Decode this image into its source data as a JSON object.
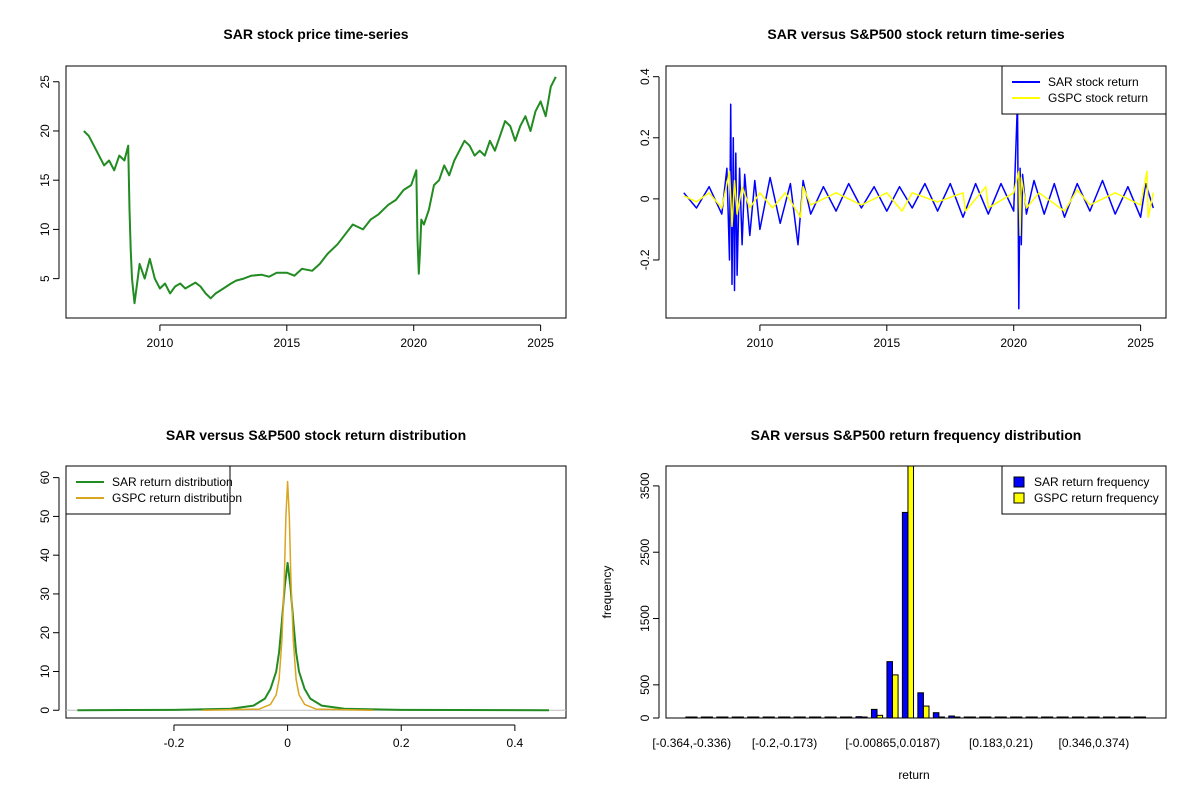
{
  "chart_data": [
    {
      "id": "price",
      "type": "line",
      "title": "SAR stock price time-series",
      "xlabel": "",
      "ylabel": "",
      "xlim": [
        2006.3,
        2026.0
      ],
      "ylim": [
        1.0,
        26.6
      ],
      "x_ticks": [
        2010,
        2015,
        2020,
        2025
      ],
      "y_ticks": [
        5,
        10,
        15,
        20,
        25
      ],
      "colors": {
        "line": "#228B22"
      },
      "series": [
        {
          "name": "SAR price",
          "x": [
            2007.0,
            2007.2,
            2007.4,
            2007.6,
            2007.8,
            2008.0,
            2008.2,
            2008.4,
            2008.6,
            2008.75,
            2008.8,
            2008.85,
            2008.9,
            2009.0,
            2009.1,
            2009.2,
            2009.4,
            2009.6,
            2009.8,
            2010.0,
            2010.2,
            2010.4,
            2010.6,
            2010.8,
            2011.0,
            2011.2,
            2011.4,
            2011.6,
            2011.8,
            2012.0,
            2012.2,
            2012.5,
            2012.8,
            2013.0,
            2013.3,
            2013.6,
            2014.0,
            2014.3,
            2014.6,
            2015.0,
            2015.3,
            2015.6,
            2016.0,
            2016.3,
            2016.6,
            2017.0,
            2017.3,
            2017.6,
            2018.0,
            2018.3,
            2018.6,
            2019.0,
            2019.3,
            2019.6,
            2019.9,
            2020.1,
            2020.15,
            2020.2,
            2020.25,
            2020.3,
            2020.4,
            2020.6,
            2020.8,
            2021.0,
            2021.2,
            2021.4,
            2021.6,
            2021.8,
            2022.0,
            2022.2,
            2022.4,
            2022.6,
            2022.8,
            2023.0,
            2023.2,
            2023.4,
            2023.6,
            2023.8,
            2024.0,
            2024.2,
            2024.4,
            2024.6,
            2024.8,
            2025.0,
            2025.2,
            2025.4,
            2025.6
          ],
          "y": [
            20.0,
            19.5,
            18.5,
            17.5,
            16.5,
            17.0,
            16.0,
            17.5,
            17.0,
            18.5,
            12.0,
            8.0,
            5.0,
            2.5,
            4.5,
            6.5,
            5.0,
            7.0,
            5.0,
            4.0,
            4.5,
            3.5,
            4.2,
            4.5,
            4.0,
            4.3,
            4.6,
            4.2,
            3.5,
            3.0,
            3.5,
            4.0,
            4.5,
            4.8,
            5.0,
            5.3,
            5.4,
            5.2,
            5.6,
            5.6,
            5.3,
            6.0,
            5.8,
            6.5,
            7.5,
            8.5,
            9.5,
            10.5,
            10.0,
            11.0,
            11.5,
            12.5,
            13.0,
            14.0,
            14.5,
            16.0,
            9.0,
            5.5,
            8.0,
            11.0,
            10.5,
            12.0,
            14.5,
            15.0,
            16.5,
            15.5,
            17.0,
            18.0,
            19.0,
            18.5,
            17.5,
            18.0,
            17.5,
            19.0,
            18.0,
            19.5,
            21.0,
            20.5,
            19.0,
            20.5,
            21.5,
            20.0,
            22.0,
            23.0,
            21.5,
            24.5,
            25.5
          ]
        }
      ]
    },
    {
      "id": "returns",
      "type": "line",
      "title": "SAR versus S&P500 stock return time-series",
      "xlabel": "",
      "ylabel": "",
      "xlim": [
        2006.3,
        2026.0
      ],
      "ylim": [
        -0.39,
        0.435
      ],
      "x_ticks": [
        2010,
        2015,
        2020,
        2025
      ],
      "y_ticks": [
        -0.2,
        0.0,
        0.2,
        0.4
      ],
      "legend": {
        "position": "top-right",
        "entries": [
          "SAR stock return",
          "GSPC stock return"
        ]
      },
      "colors": {
        "sar": "#0000FF",
        "gspc": "#FFFF00"
      },
      "series": [
        {
          "name": "SAR stock return",
          "x": [
            2007.0,
            2007.5,
            2008.0,
            2008.5,
            2008.7,
            2008.8,
            2008.85,
            2008.9,
            2008.95,
            2009.0,
            2009.05,
            2009.1,
            2009.2,
            2009.3,
            2009.4,
            2009.6,
            2009.8,
            2010.0,
            2010.4,
            2010.8,
            2011.2,
            2011.5,
            2011.7,
            2012.0,
            2012.5,
            2013.0,
            2013.5,
            2014.0,
            2014.5,
            2015.0,
            2015.5,
            2016.0,
            2016.5,
            2017.0,
            2017.5,
            2018.0,
            2018.5,
            2019.0,
            2019.5,
            2020.0,
            2020.15,
            2020.2,
            2020.25,
            2020.3,
            2020.35,
            2020.5,
            2020.8,
            2021.2,
            2021.6,
            2022.0,
            2022.5,
            2023.0,
            2023.5,
            2024.0,
            2024.5,
            2025.0,
            2025.2,
            2025.5
          ],
          "y": [
            0.02,
            -0.03,
            0.04,
            -0.05,
            0.1,
            -0.2,
            0.31,
            -0.28,
            0.2,
            -0.3,
            0.15,
            -0.25,
            0.1,
            -0.15,
            0.08,
            -0.12,
            0.06,
            -0.1,
            0.07,
            -0.08,
            0.05,
            -0.15,
            0.06,
            -0.05,
            0.04,
            -0.04,
            0.05,
            -0.03,
            0.04,
            -0.04,
            0.04,
            -0.03,
            0.05,
            -0.04,
            0.05,
            -0.06,
            0.05,
            -0.05,
            0.05,
            -0.04,
            0.32,
            -0.36,
            0.1,
            -0.15,
            0.08,
            -0.05,
            0.06,
            -0.05,
            0.05,
            -0.06,
            0.05,
            -0.04,
            0.06,
            -0.05,
            0.04,
            -0.06,
            0.05,
            -0.03
          ]
        },
        {
          "name": "GSPC stock return",
          "x": [
            2007.0,
            2007.5,
            2008.0,
            2008.5,
            2008.8,
            2008.9,
            2009.0,
            2009.1,
            2009.3,
            2009.6,
            2010.0,
            2010.5,
            2011.0,
            2011.6,
            2011.7,
            2012.0,
            2013.0,
            2014.0,
            2015.0,
            2015.6,
            2016.0,
            2017.0,
            2018.0,
            2018.1,
            2018.9,
            2019.0,
            2020.0,
            2020.2,
            2020.25,
            2020.3,
            2020.5,
            2021.0,
            2022.0,
            2022.5,
            2023.0,
            2024.0,
            2025.0,
            2025.25,
            2025.3,
            2025.5
          ],
          "y": [
            0.01,
            -0.01,
            0.02,
            -0.03,
            0.09,
            -0.09,
            0.06,
            -0.05,
            0.04,
            -0.03,
            0.02,
            -0.03,
            0.02,
            -0.06,
            0.04,
            -0.02,
            0.02,
            -0.02,
            0.02,
            -0.04,
            0.02,
            -0.01,
            0.02,
            -0.04,
            0.04,
            -0.03,
            0.02,
            0.09,
            -0.12,
            0.07,
            -0.03,
            0.02,
            -0.04,
            0.03,
            -0.02,
            0.02,
            -0.02,
            0.09,
            -0.06,
            0.02
          ]
        }
      ]
    },
    {
      "id": "density",
      "type": "line",
      "title": "SAR versus S&P500 stock return distribution",
      "xlabel": "",
      "ylabel": "",
      "xlim": [
        -0.39,
        0.49
      ],
      "ylim": [
        -2,
        63
      ],
      "x_ticks": [
        -0.2,
        0.0,
        0.2,
        0.4
      ],
      "y_ticks": [
        0,
        10,
        20,
        30,
        40,
        50,
        60
      ],
      "legend": {
        "position": "top-left",
        "entries": [
          "SAR return distribution",
          "GSPC return distribution"
        ]
      },
      "colors": {
        "sar": "#228B22",
        "gspc": "#DAA520",
        "baseline": "#BEBEBE"
      },
      "series": [
        {
          "name": "SAR return distribution",
          "x": [
            -0.37,
            -0.2,
            -0.1,
            -0.06,
            -0.04,
            -0.03,
            -0.02,
            -0.015,
            -0.01,
            -0.005,
            0.0,
            0.005,
            0.01,
            0.015,
            0.02,
            0.03,
            0.04,
            0.06,
            0.1,
            0.2,
            0.46
          ],
          "y": [
            0,
            0.1,
            0.4,
            1.2,
            3,
            5.5,
            10,
            15,
            23,
            32,
            38,
            32,
            23,
            15,
            10,
            5.5,
            3,
            1.2,
            0.4,
            0.1,
            0
          ]
        },
        {
          "name": "GSPC return distribution",
          "x": [
            -0.15,
            -0.05,
            -0.03,
            -0.02,
            -0.015,
            -0.01,
            -0.006,
            -0.003,
            0.0,
            0.003,
            0.006,
            0.01,
            0.015,
            0.02,
            0.03,
            0.05,
            0.15
          ],
          "y": [
            0,
            0.3,
            1.5,
            4,
            8,
            18,
            33,
            50,
            59,
            50,
            33,
            18,
            8,
            4,
            1.5,
            0.3,
            0
          ]
        }
      ]
    },
    {
      "id": "histogram",
      "type": "bar",
      "title": "SAR versus S&P500 return frequency distribution",
      "xlabel": "return",
      "ylabel": "frequency",
      "ylim": [
        0,
        3800
      ],
      "y_ticks": [
        0,
        500,
        1500,
        2500,
        3500
      ],
      "x_tick_labels": [
        "[-0.364,-0.336)",
        "[-0.2,-0.173)",
        "[-0.00865,0.0187)",
        "[0.183,0.21)",
        "[0.346,0.374)"
      ],
      "x_tick_bins": [
        0,
        6,
        13,
        20,
        26
      ],
      "legend": {
        "position": "top-right",
        "entries": [
          "SAR return frequency",
          "GSPC return frequency"
        ]
      },
      "colors": {
        "sar": "#0000FF",
        "gspc": "#FFFF00"
      },
      "bin_count": 30,
      "series": [
        {
          "name": "SAR return frequency",
          "values": [
            1,
            0,
            0,
            0,
            0,
            1,
            1,
            2,
            3,
            5,
            10,
            20,
            130,
            850,
            3100,
            380,
            80,
            30,
            15,
            10,
            5,
            3,
            2,
            1,
            1,
            0,
            0,
            0,
            0,
            1
          ]
        },
        {
          "name": "GSPC return frequency",
          "values": [
            0,
            0,
            0,
            0,
            0,
            0,
            0,
            0,
            0,
            0,
            0,
            0,
            40,
            650,
            3900,
            180,
            5,
            0,
            0,
            0,
            0,
            0,
            0,
            0,
            0,
            0,
            0,
            0,
            0,
            0
          ]
        }
      ]
    }
  ]
}
